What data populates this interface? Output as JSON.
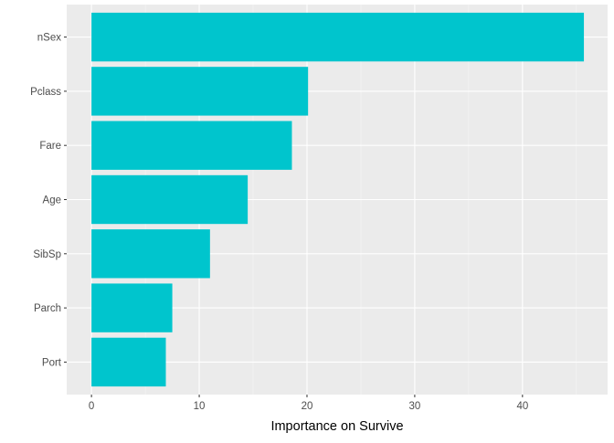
{
  "chart_data": {
    "type": "bar",
    "orientation": "horizontal",
    "categories": [
      "nSex",
      "Pclass",
      "Fare",
      "Age",
      "SibSp",
      "Parch",
      "Port"
    ],
    "values": [
      45.7,
      20.1,
      18.6,
      14.5,
      11.0,
      7.5,
      6.9
    ],
    "xlabel": "Importance on Survive",
    "ylabel": "",
    "xlim": [
      -2.3,
      47.9
    ],
    "xticks": [
      0,
      10,
      20,
      30,
      40
    ],
    "xtick_labels": [
      "0",
      "10",
      "20",
      "30",
      "40"
    ],
    "grid": true,
    "legend": "none",
    "colors": {
      "bar": "#00C5CD",
      "panel": "#EBEBEB",
      "grid_major": "#FFFFFF",
      "grid_minor": "#F5F5F5",
      "tick_text": "#4D4D4D",
      "axis_title": "#000000"
    }
  }
}
